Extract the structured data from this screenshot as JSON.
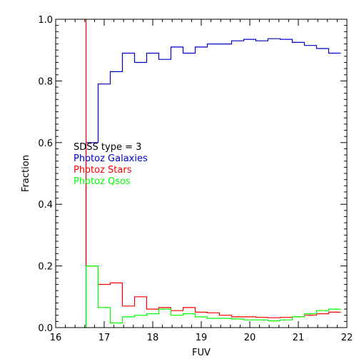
{
  "chart_data": {
    "type": "line",
    "style": "step",
    "xlabel": "FUV",
    "ylabel": "Fraction",
    "xlim": [
      16,
      22
    ],
    "ylim": [
      0,
      1
    ],
    "xticks": [
      16,
      17,
      18,
      19,
      20,
      21,
      22
    ],
    "yticks": [
      0.0,
      0.2,
      0.4,
      0.6,
      0.8,
      1.0
    ],
    "xtick_labels": [
      "16",
      "17",
      "18",
      "19",
      "20",
      "21",
      "22"
    ],
    "ytick_labels": [
      "0.0",
      "0.2",
      "0.4",
      "0.6",
      "0.8",
      "1.0"
    ],
    "annotation": "SDSS type = 3",
    "legend_position": "left-middle",
    "bin_edges": [
      16.625,
      16.875,
      17.125,
      17.375,
      17.625,
      17.875,
      18.125,
      18.375,
      18.625,
      18.875,
      19.125,
      19.375,
      19.625,
      19.875,
      20.125,
      20.375,
      20.625,
      20.875,
      21.125,
      21.375,
      21.625,
      21.875
    ],
    "series": [
      {
        "name": "Photoz Galaxies",
        "color": "#0000cc",
        "values": [
          0.6,
          0.79,
          0.83,
          0.89,
          0.86,
          0.89,
          0.87,
          0.91,
          0.89,
          0.91,
          0.92,
          0.92,
          0.93,
          0.935,
          0.93,
          0.937,
          0.935,
          0.925,
          0.915,
          0.905,
          0.89
        ],
        "spike_x": 16.625,
        "spike_top": 0.0
      },
      {
        "name": "Photoz Stars",
        "color": "#ff0000",
        "values": [
          0.2,
          0.14,
          0.145,
          0.07,
          0.1,
          0.06,
          0.065,
          0.055,
          0.065,
          0.05,
          0.048,
          0.04,
          0.035,
          0.035,
          0.033,
          0.032,
          0.033,
          0.035,
          0.04,
          0.045,
          0.05
        ],
        "spike_x": 16.625,
        "spike_top": 1.0
      },
      {
        "name": "Photoz Qsos",
        "color": "#00ff00",
        "values": [
          0.2,
          0.065,
          0.015,
          0.035,
          0.04,
          0.045,
          0.06,
          0.04,
          0.045,
          0.035,
          0.03,
          0.03,
          0.028,
          0.025,
          0.025,
          0.022,
          0.025,
          0.035,
          0.045,
          0.055,
          0.06
        ],
        "spike_x": 16.625,
        "spike_top": 0.0
      }
    ]
  }
}
